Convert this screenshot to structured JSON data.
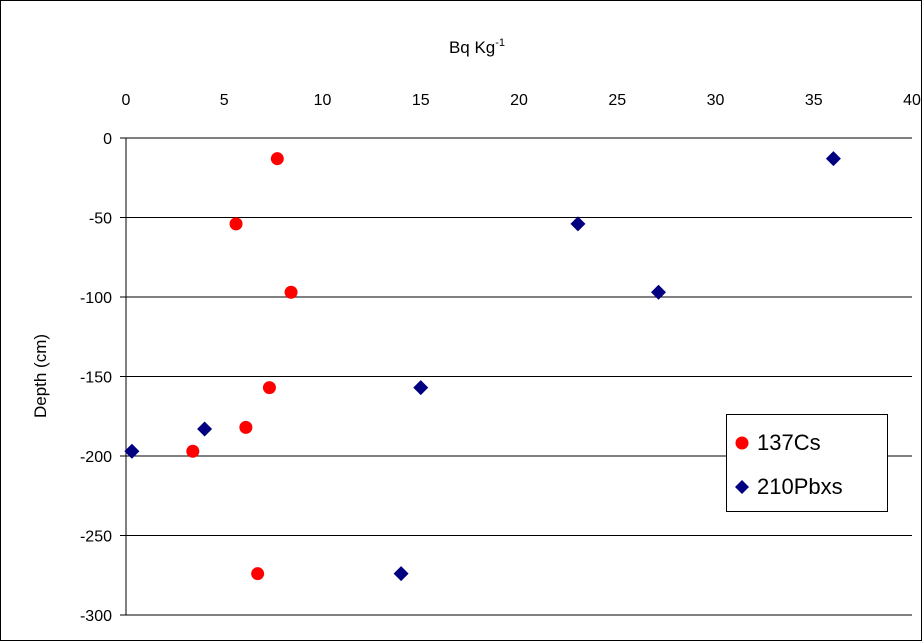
{
  "chart_data": {
    "type": "scatter",
    "title": "",
    "xlabel": "Bq Kg",
    "xlabel_sup": "-1",
    "ylabel": "Depth (cm)",
    "xlim": [
      0,
      40
    ],
    "ylim": [
      -300,
      0
    ],
    "x_ticks": [
      0,
      5,
      10,
      15,
      20,
      25,
      30,
      35,
      40
    ],
    "y_ticks": [
      0,
      -50,
      -100,
      -150,
      -200,
      -250,
      -300
    ],
    "x_axis_position": "top",
    "grid": "horizontal",
    "legend_position": "right",
    "series": [
      {
        "name": "137Cs",
        "marker": "circle",
        "color": "#ff0000",
        "points": [
          {
            "x": 7.7,
            "y": -13
          },
          {
            "x": 5.6,
            "y": -54
          },
          {
            "x": 8.4,
            "y": -97
          },
          {
            "x": 7.3,
            "y": -157
          },
          {
            "x": 6.1,
            "y": -182
          },
          {
            "x": 3.4,
            "y": -197
          },
          {
            "x": 6.7,
            "y": -274
          }
        ]
      },
      {
        "name": "210Pbxs",
        "marker": "diamond",
        "color": "#000080",
        "points": [
          {
            "x": 36.0,
            "y": -13
          },
          {
            "x": 23.0,
            "y": -54
          },
          {
            "x": 27.1,
            "y": -97
          },
          {
            "x": 15.0,
            "y": -157
          },
          {
            "x": 4.0,
            "y": -183
          },
          {
            "x": 0.3,
            "y": -197
          },
          {
            "x": 14.0,
            "y": -274
          }
        ]
      }
    ]
  }
}
